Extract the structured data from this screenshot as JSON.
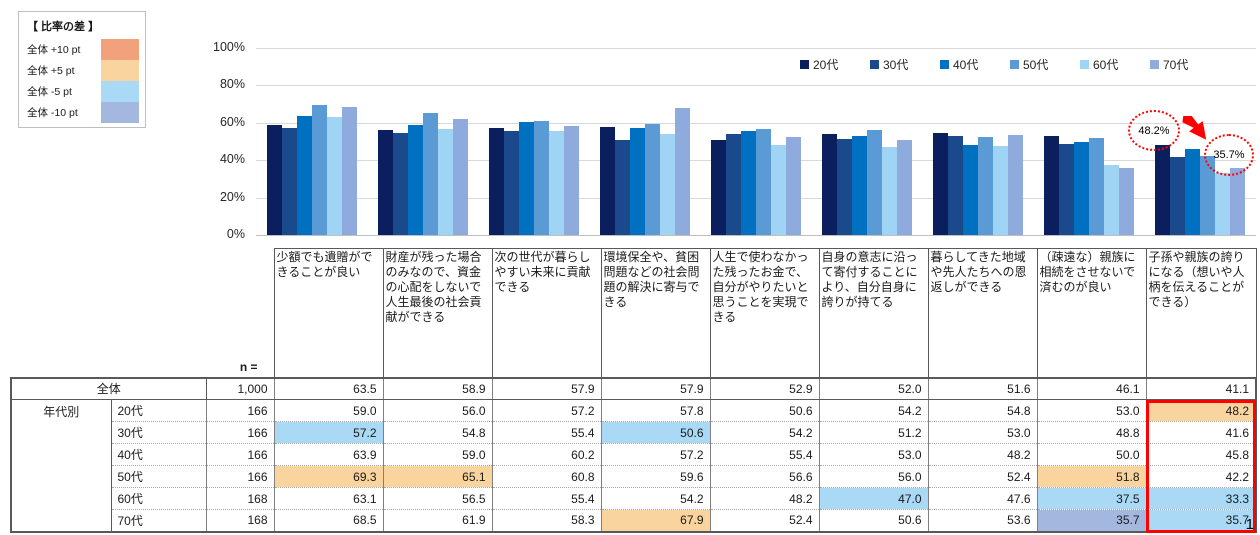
{
  "page": {
    "number": "1"
  },
  "diff_legend": {
    "title": "【 比率の差 】",
    "items": [
      {
        "label": "全体 +10 pt",
        "key": "plus10",
        "color": "#F1A27D"
      },
      {
        "label": "全体 +5 pt",
        "key": "plus5",
        "color": "#FAD49E"
      },
      {
        "label": "全体 -5 pt",
        "key": "minus5",
        "color": "#A9D9F5"
      },
      {
        "label": "全体 -10 pt",
        "key": "minus10",
        "color": "#A4B7DE"
      }
    ]
  },
  "chart_data": {
    "type": "bar",
    "title": "",
    "xlabel": "",
    "ylabel": "",
    "ylim": [
      0,
      100
    ],
    "yticks": [
      0,
      20,
      40,
      60,
      80,
      100
    ],
    "ytick_suffix": "%",
    "grid": true,
    "legend_position": "top-right",
    "categories": [
      "少額でも遺贈ができることが良い",
      "財産が残った場合のみなので、資金の心配をしないで人生最後の社会貢献ができる",
      "次の世代が暮らしやすい未来に貢献できる",
      "環境保全や、貧困問題などの社会問題の解決に寄与できる",
      "人生で使わなかった残ったお金で、自分がやりたいと思うことを実現できる",
      "自身の意志に沿って寄付することにより、自分自身に誇りが持てる",
      "暮らしてきた地域や先人たちへの恩返しができる",
      "（疎遠な）親族に相続をさせないで済むのが良い",
      "子孫や親族の誇りになる（想いや人柄を伝えることができる）"
    ],
    "series": [
      {
        "name": "20代",
        "color": "#0B1F5E",
        "values": [
          59.0,
          56.0,
          57.2,
          57.8,
          50.6,
          54.2,
          54.8,
          53.0,
          48.2
        ]
      },
      {
        "name": "30代",
        "color": "#1A4A8C",
        "values": [
          57.2,
          54.8,
          55.4,
          50.6,
          54.2,
          51.2,
          53.0,
          48.8,
          41.6
        ]
      },
      {
        "name": "40代",
        "color": "#0070C0",
        "values": [
          63.9,
          59.0,
          60.2,
          57.2,
          55.4,
          53.0,
          48.2,
          50.0,
          45.8
        ]
      },
      {
        "name": "50代",
        "color": "#5B9BD5",
        "values": [
          69.3,
          65.1,
          60.8,
          59.6,
          56.6,
          56.0,
          52.4,
          51.8,
          42.2
        ]
      },
      {
        "name": "60代",
        "color": "#A0D4F5",
        "values": [
          63.1,
          56.5,
          55.4,
          54.2,
          48.2,
          47.0,
          47.6,
          37.5,
          33.3
        ]
      },
      {
        "name": "70代",
        "color": "#8FAADC",
        "values": [
          68.5,
          61.9,
          58.3,
          67.9,
          52.4,
          50.6,
          53.6,
          35.7,
          35.7
        ]
      }
    ],
    "annotations": [
      {
        "text": "48.2%",
        "note": "20代 × 子孫や親族の誇りになる"
      },
      {
        "text": "35.7%",
        "note": "70代 × 子孫や親族の誇りになる"
      }
    ]
  },
  "table": {
    "n_label": "n =",
    "group_label": "年代別",
    "total_row": {
      "label": "全体",
      "n": "1,000",
      "values": [
        63.5,
        58.9,
        57.9,
        57.9,
        52.9,
        52.0,
        51.6,
        46.1,
        41.1
      ]
    },
    "age_rows": [
      {
        "label": "20代",
        "n": "166",
        "values": [
          59.0,
          56.0,
          57.2,
          57.8,
          50.6,
          54.2,
          54.8,
          53.0,
          48.2
        ],
        "highlights": {
          "8": "plus5"
        }
      },
      {
        "label": "30代",
        "n": "166",
        "values": [
          57.2,
          54.8,
          55.4,
          50.6,
          54.2,
          51.2,
          53.0,
          48.8,
          41.6
        ],
        "highlights": {
          "0": "minus5",
          "3": "minus5"
        }
      },
      {
        "label": "40代",
        "n": "166",
        "values": [
          63.9,
          59.0,
          60.2,
          57.2,
          55.4,
          53.0,
          48.2,
          50.0,
          45.8
        ],
        "highlights": {}
      },
      {
        "label": "50代",
        "n": "166",
        "values": [
          69.3,
          65.1,
          60.8,
          59.6,
          56.6,
          56.0,
          52.4,
          51.8,
          42.2
        ],
        "highlights": {
          "0": "plus5",
          "1": "plus5",
          "7": "plus5"
        }
      },
      {
        "label": "60代",
        "n": "168",
        "values": [
          63.1,
          56.5,
          55.4,
          54.2,
          48.2,
          47.0,
          47.6,
          37.5,
          33.3
        ],
        "highlights": {
          "5": "minus5",
          "7": "minus5",
          "8": "minus5"
        }
      },
      {
        "label": "70代",
        "n": "168",
        "values": [
          68.5,
          61.9,
          58.3,
          67.9,
          52.4,
          50.6,
          53.6,
          35.7,
          35.7
        ],
        "highlights": {
          "3": "plus5",
          "7": "minus10",
          "8": "minus5"
        }
      }
    ]
  }
}
